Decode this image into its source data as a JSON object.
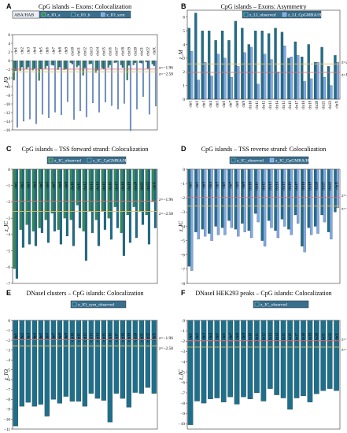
{
  "colors": {
    "a": "#2e8b57",
    "b": "#1f6f8b",
    "sym": "#7fa9e8",
    "asym": "#1f6f8b",
    "asym_ctrl": "#7fa9e8",
    "fwd": "#2e8b57",
    "rev": "#1f6f8b",
    "dnase": "#1f6f8b",
    "line196": "#e07070",
    "line258": "#e8c060",
    "frame": "#333333",
    "legend_bg": "#3a6e8c"
  },
  "chart_data": [
    {
      "panel": "A",
      "title": "CpG islands – Exons: Colocalization",
      "type": "bar",
      "ylabel": "z_IO",
      "ylim": [
        -16,
        6
      ],
      "yticks": [
        6,
        4,
        2,
        0,
        -2,
        -4,
        -6,
        -8,
        -10,
        -12,
        -14,
        -16
      ],
      "ref_lines": [
        {
          "value": -1.96,
          "label": "z=-1.96"
        },
        {
          "value": -2.58,
          "label": "z=-2.58"
        }
      ],
      "legend": {
        "prefix": "ABA/HAB",
        "entries": [
          "z_IO_a",
          "z_IO_b",
          "z_IO_sym"
        ]
      },
      "categories": [
        "chr1",
        "chr2",
        "chr3",
        "chr4",
        "chr5",
        "chr6",
        "chr7",
        "chr8",
        "chr9",
        "chr10",
        "chr11",
        "chr12",
        "chr13",
        "chr14",
        "chr15",
        "chr16",
        "chr17",
        "chr18",
        "chr19",
        "chr20",
        "chr21",
        "chr22",
        "chrX"
      ],
      "series": [
        {
          "name": "z_IO_a",
          "color_key": "a",
          "values": [
            -4.5,
            -2.3,
            -2.0,
            -2.2,
            -4.6,
            -1.8,
            -1.0,
            -2.1,
            -2.1,
            -0.5,
            -1.5,
            -3.4,
            -0.8,
            -2.8,
            -1.7,
            -1.6,
            -0.5,
            -1.0,
            -4.5,
            -1.0,
            -0.5,
            -0.3,
            -0.8
          ]
        },
        {
          "name": "z_IO_b",
          "color_key": "b",
          "values": [
            -2.3,
            -1.5,
            -1.5,
            -1.8,
            -1.9,
            -1.2,
            -1.1,
            -1.5,
            -1.9,
            -0.8,
            -1.1,
            -1.7,
            -0.7,
            -2.2,
            -1.9,
            -1.0,
            -0.4,
            -1.6,
            -1.1,
            -0.5,
            -0.6,
            -1.8,
            -1.2
          ]
        },
        {
          "name": "z_IO_sym",
          "color_key": "sym",
          "values": [
            -15.4,
            -14.0,
            -13.5,
            -14.6,
            -12.4,
            -13.2,
            -11.9,
            -12.5,
            -9.5,
            -13.6,
            -11.6,
            -13.0,
            -9.8,
            -11.9,
            -9.6,
            -10.4,
            -11.2,
            -9.9,
            -16.2,
            -11.2,
            -8.3,
            -12.4,
            -10.5
          ]
        }
      ]
    },
    {
      "panel": "B",
      "title": "CpG islands – Exons: Asymmetry",
      "type": "bar",
      "ylabel": "z_M",
      "ylim": [
        0,
        6.5
      ],
      "yticks": [
        6,
        5,
        4,
        3,
        2,
        1,
        0
      ],
      "ref_lines": [
        {
          "value": 2.58,
          "label": "z=2.58"
        },
        {
          "value": 1.96,
          "label": "z=1.96"
        }
      ],
      "legend": {
        "entries": [
          "z_LI_observed",
          "z_LI_CpGMRA/HG"
        ]
      },
      "categories": [
        "chr1",
        "chr2",
        "chr3",
        "chr4",
        "chr5",
        "chr6",
        "chr7",
        "chr8",
        "chr9",
        "chr10",
        "chr11",
        "chr12",
        "chr13",
        "chr14",
        "chr15",
        "chr16",
        "chr17",
        "chr18",
        "chr19",
        "chr20",
        "chr21",
        "chr22",
        "chrX"
      ],
      "series": [
        {
          "name": "z_LI_observed",
          "color_key": "asym",
          "values": [
            5.2,
            6.3,
            5.0,
            5.0,
            4.3,
            5.0,
            4.3,
            5.7,
            5.2,
            4.0,
            5.0,
            5.0,
            4.8,
            5.2,
            4.9,
            3.0,
            4.2,
            3.1,
            4.0,
            2.7,
            3.8,
            2.4,
            3.2
          ]
        },
        {
          "name": "z_LI_CpGMRA/HG",
          "color_key": "asym_ctrl",
          "values": [
            3.5,
            1.4,
            2.7,
            1.7,
            3.3,
            3.0,
            1.6,
            2.4,
            3.4,
            3.8,
            1.1,
            3.3,
            2.9,
            2.0,
            3.9,
            3.1,
            3.2,
            1.3,
            1.5,
            2.7,
            1.6,
            1.0,
            2.7
          ]
        }
      ]
    },
    {
      "panel": "C",
      "title": "CpG islands – TSS forward strand: Colocalization",
      "type": "bar",
      "ylabel": "z_IC",
      "ylim": [
        -7,
        0
      ],
      "yticks": [
        0,
        -1,
        -2,
        -3,
        -4,
        -5,
        -6,
        -7
      ],
      "ref_lines": [
        {
          "value": -1.96,
          "label": "z=-1.96"
        },
        {
          "value": -2.58,
          "label": "z=-2.58"
        }
      ],
      "legend": {
        "entries": [
          "z_IC_observed",
          "z_IC_CpGMRA/HG"
        ]
      },
      "categories": [
        "chr1",
        "chr2",
        "chr3",
        "chr4",
        "chr5",
        "chr6",
        "chr7",
        "chr8",
        "chr9",
        "chr10",
        "chr11",
        "chr12",
        "chr13",
        "chr14",
        "chr15",
        "chr16",
        "chr17",
        "chr18",
        "chr19",
        "chr20",
        "chr21",
        "chr22",
        "chrX"
      ],
      "series": [
        {
          "name": "z_IC_observed",
          "color_key": "fwd",
          "values": [
            -6.1,
            -3.7,
            -3.4,
            -3.8,
            -3.6,
            -3.1,
            -2.7,
            -3.7,
            -3.0,
            -3.1,
            -2.2,
            -3.8,
            -2.6,
            -3.1,
            -2.6,
            -3.0,
            -2.3,
            -3.9,
            -2.8,
            -2.3,
            -2.6,
            -2.8,
            -2.0
          ]
        },
        {
          "name": "z_IC_CpGMRA/HG",
          "color_key": "rev",
          "values": [
            -6.7,
            -4.8,
            -4.6,
            -4.7,
            -3.9,
            -4.5,
            -3.8,
            -4.6,
            -4.1,
            -4.7,
            -3.6,
            -5.6,
            -3.9,
            -4.7,
            -3.7,
            -4.3,
            -3.6,
            -5.3,
            -4.5,
            -4.2,
            -3.4,
            -4.6,
            -3.6
          ]
        }
      ]
    },
    {
      "panel": "D",
      "title": "CpG islands – TSS reverse strand: Colocalization",
      "type": "bar",
      "ylabel": "z_IC",
      "ylim": [
        -8,
        0
      ],
      "yticks": [
        0,
        -1,
        -2,
        -3,
        -4,
        -5,
        -6,
        -7,
        -8
      ],
      "ref_lines": [
        {
          "value": -1.96,
          "label": "z=-1.96"
        },
        {
          "value": -2.58,
          "label": "z=-2.58"
        }
      ],
      "legend": {
        "entries": [
          "z_IC_observed",
          "z_IC_CpGMRA/HG"
        ]
      },
      "categories": [
        "chr1",
        "chr2",
        "chr3",
        "chr4",
        "chr5",
        "chr6",
        "chr7",
        "chr8",
        "chr9",
        "chr10",
        "chr11",
        "chr12",
        "chr13",
        "chr14",
        "chr15",
        "chr16",
        "chr17",
        "chr18",
        "chr19",
        "chr20",
        "chr21",
        "chr22",
        "chrX"
      ],
      "series": [
        {
          "name": "z_IC_observed",
          "color_key": "b",
          "values": [
            -6.8,
            -4.4,
            -4.2,
            -4.5,
            -4.0,
            -4.1,
            -3.6,
            -4.2,
            -3.8,
            -4.3,
            -3.1,
            -5.0,
            -3.6,
            -4.3,
            -3.5,
            -4.2,
            -3.2,
            -5.4,
            -4.1,
            -4.0,
            -3.2,
            -4.4,
            -3.0
          ]
        },
        {
          "name": "z_IC_CpGMRA/HG",
          "color_key": "sym",
          "values": [
            -7.1,
            -4.9,
            -4.7,
            -5.0,
            -4.6,
            -4.6,
            -4.1,
            -4.7,
            -4.4,
            -4.8,
            -3.7,
            -5.4,
            -4.1,
            -4.8,
            -4.0,
            -4.6,
            -3.8,
            -5.8,
            -4.6,
            -4.5,
            -3.7,
            -4.9,
            -2.7
          ]
        }
      ]
    },
    {
      "panel": "E",
      "title": "DNaseI clusters – CpG islands: Colocalization",
      "type": "bar",
      "ylabel": "z_IO",
      "ylim": [
        -11,
        0
      ],
      "yticks": [
        0,
        -1,
        -2,
        -3,
        -4,
        -5,
        -6,
        -7,
        -8,
        -9,
        -10,
        -11
      ],
      "ref_lines": [
        {
          "value": -1.96,
          "label": "z=-1.96"
        },
        {
          "value": -2.58,
          "label": "z=-2.58"
        }
      ],
      "legend": {
        "entries": [
          "z_IO_sym_observed"
        ]
      },
      "categories": [
        "chr1",
        "chr2",
        "chr3",
        "chr4",
        "chr5",
        "chr6",
        "chr7",
        "chr8",
        "chr9",
        "chr10",
        "chr11",
        "chr12",
        "chr13",
        "chr14",
        "chr15",
        "chr16",
        "chr17",
        "chr18",
        "chr19",
        "chr20",
        "chr21",
        "chr22",
        "chrX"
      ],
      "series": [
        {
          "name": "z_IO_sym_observed",
          "color_key": "dnase",
          "values": [
            -10.7,
            -8.7,
            -8.3,
            -8.7,
            -8.5,
            -9.7,
            -8.0,
            -8.4,
            -7.7,
            -8.2,
            -8.2,
            -8.7,
            -7.4,
            -7.9,
            -8.1,
            -10.3,
            -7.4,
            -7.9,
            -8.8,
            -7.3,
            -7.4,
            -6.8,
            -7.4
          ]
        }
      ]
    },
    {
      "panel": "F",
      "title": "DNaseI HEK293 peaks – CpG islands: Colocalization",
      "type": "bar",
      "ylabel": "z_IC",
      "ylim": [
        -10.5,
        0
      ],
      "yticks": [
        0,
        -1,
        -2,
        -3,
        -4,
        -5,
        -6,
        -7,
        -8,
        -9,
        -10
      ],
      "ref_lines": [
        {
          "value": -1.96,
          "label": "z=-1.96"
        },
        {
          "value": -2.58,
          "label": "z=-2.58"
        }
      ],
      "legend": {
        "entries": [
          "z_IC_observed"
        ]
      },
      "categories": [
        "chr1",
        "chr2",
        "chr3",
        "chr4",
        "chr5",
        "chr6",
        "chr7",
        "chr8",
        "chr9",
        "chr10",
        "chr11",
        "chr12",
        "chr13",
        "chr14",
        "chr15",
        "chr16",
        "chr17",
        "chr18",
        "chr19",
        "chr20",
        "chr21",
        "chr22",
        "chrX"
      ],
      "series": [
        {
          "name": "z_IC_observed",
          "color_key": "dnase",
          "values": [
            -10.1,
            -7.8,
            -8.0,
            -7.6,
            -7.5,
            -7.9,
            -7.4,
            -8.1,
            -7.4,
            -7.6,
            -7.0,
            -7.8,
            -6.6,
            -7.2,
            -7.5,
            -8.6,
            -7.5,
            -7.3,
            -7.9,
            -7.1,
            -6.8,
            -6.6,
            -6.8
          ]
        }
      ]
    }
  ]
}
